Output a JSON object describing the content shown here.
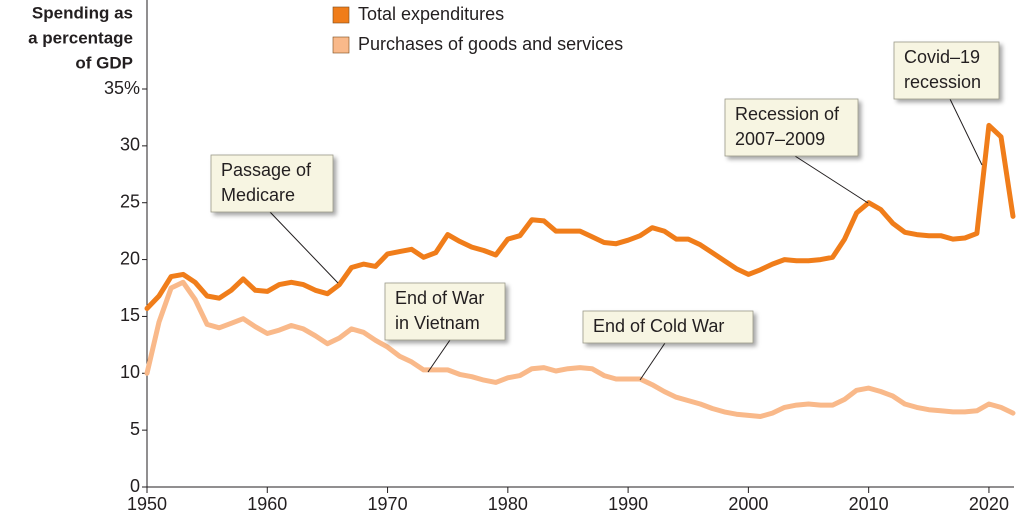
{
  "chart_data": {
    "type": "line",
    "y_label": [
      "Spending as",
      "a percentage",
      "of GDP"
    ],
    "x": [
      1950,
      1951,
      1952,
      1953,
      1954,
      1955,
      1956,
      1957,
      1958,
      1959,
      1960,
      1961,
      1962,
      1963,
      1964,
      1965,
      1966,
      1967,
      1968,
      1969,
      1970,
      1971,
      1972,
      1973,
      1974,
      1975,
      1976,
      1977,
      1978,
      1979,
      1980,
      1981,
      1982,
      1983,
      1984,
      1985,
      1986,
      1987,
      1988,
      1989,
      1990,
      1991,
      1992,
      1993,
      1994,
      1995,
      1996,
      1997,
      1998,
      1999,
      2000,
      2001,
      2002,
      2003,
      2004,
      2005,
      2006,
      2007,
      2008,
      2009,
      2010,
      2011,
      2012,
      2013,
      2014,
      2015,
      2016,
      2017,
      2018,
      2019,
      2020,
      2021,
      2022
    ],
    "series": [
      {
        "name": "Total expenditures",
        "color": "#f07d1a",
        "values": [
          15.7,
          16.8,
          18.5,
          18.7,
          18.0,
          16.8,
          16.6,
          17.3,
          18.3,
          17.3,
          17.2,
          17.8,
          18.0,
          17.8,
          17.3,
          17.0,
          17.8,
          19.3,
          19.6,
          19.4,
          20.5,
          20.7,
          20.9,
          20.2,
          20.6,
          22.2,
          21.6,
          21.1,
          20.8,
          20.4,
          21.8,
          22.1,
          23.5,
          23.4,
          22.5,
          22.5,
          22.5,
          22.0,
          21.5,
          21.4,
          21.7,
          22.1,
          22.8,
          22.5,
          21.8,
          21.8,
          21.3,
          20.6,
          19.9,
          19.2,
          18.7,
          19.1,
          19.6,
          20.0,
          19.9,
          19.9,
          20.0,
          20.2,
          21.8,
          24.1,
          25.0,
          24.4,
          23.2,
          22.4,
          22.2,
          22.1,
          22.1,
          21.8,
          21.9,
          22.3,
          31.8,
          30.8,
          23.8
        ]
      },
      {
        "name": "Purchases of goods and services",
        "color": "#f9b98a",
        "values": [
          10.0,
          14.5,
          17.5,
          18.0,
          16.5,
          14.3,
          14.0,
          14.4,
          14.8,
          14.1,
          13.5,
          13.8,
          14.2,
          13.9,
          13.3,
          12.6,
          13.1,
          13.9,
          13.6,
          12.9,
          12.3,
          11.5,
          11.0,
          10.3,
          10.3,
          10.3,
          9.9,
          9.7,
          9.4,
          9.2,
          9.6,
          9.8,
          10.4,
          10.5,
          10.2,
          10.4,
          10.5,
          10.4,
          9.8,
          9.5,
          9.5,
          9.5,
          9.0,
          8.4,
          7.9,
          7.6,
          7.3,
          6.9,
          6.6,
          6.4,
          6.3,
          6.2,
          6.5,
          7.0,
          7.2,
          7.3,
          7.2,
          7.2,
          7.7,
          8.5,
          8.7,
          8.4,
          8.0,
          7.3,
          7.0,
          6.8,
          6.7,
          6.6,
          6.6,
          6.7,
          7.3,
          7.0,
          6.5
        ]
      }
    ],
    "xlim": [
      1950,
      2022
    ],
    "xticks": [
      1950,
      1960,
      1970,
      1980,
      1990,
      2000,
      2010,
      2020
    ],
    "ylim": [
      0,
      35
    ],
    "yticks": [
      0,
      5,
      10,
      15,
      20,
      25,
      30,
      {
        "value": 35,
        "label": "35%"
      }
    ],
    "annotations": [
      {
        "lines": [
          "Passage of",
          "Medicare"
        ]
      },
      {
        "lines": [
          "End of War",
          "in Vietnam"
        ]
      },
      {
        "lines": [
          "End of Cold War"
        ]
      },
      {
        "lines": [
          "Recession of",
          "2007–2009"
        ]
      },
      {
        "lines": [
          "Covid–19",
          "recession"
        ]
      }
    ]
  }
}
